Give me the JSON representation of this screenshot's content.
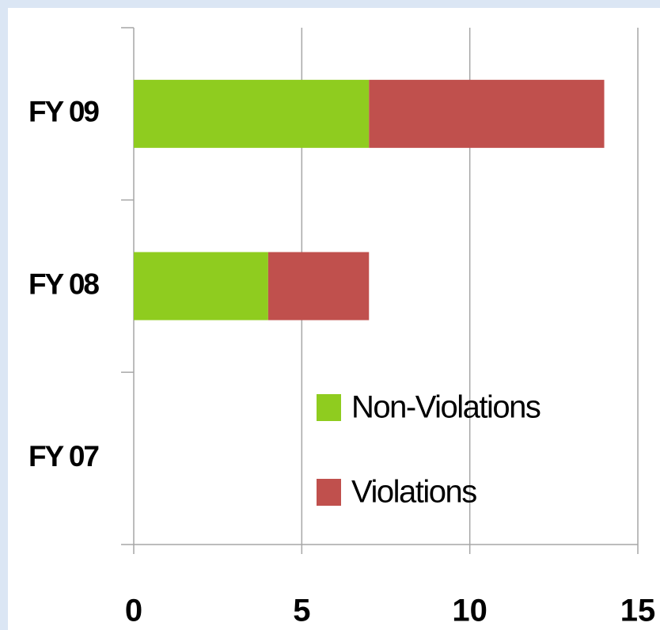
{
  "chart_data": {
    "type": "stacked_barh",
    "categories": [
      "FY 09",
      "FY 08",
      "FY 07"
    ],
    "series": [
      {
        "name": "Non-Violations",
        "color": "#8fcc1f",
        "values": [
          7,
          4,
          0
        ]
      },
      {
        "name": "Violations",
        "color": "#c0504d",
        "values": [
          7,
          3,
          0
        ]
      }
    ],
    "xlim": [
      0,
      15
    ],
    "xticks": [
      0,
      5,
      10,
      15
    ],
    "grid": true,
    "legend": "lower right"
  }
}
